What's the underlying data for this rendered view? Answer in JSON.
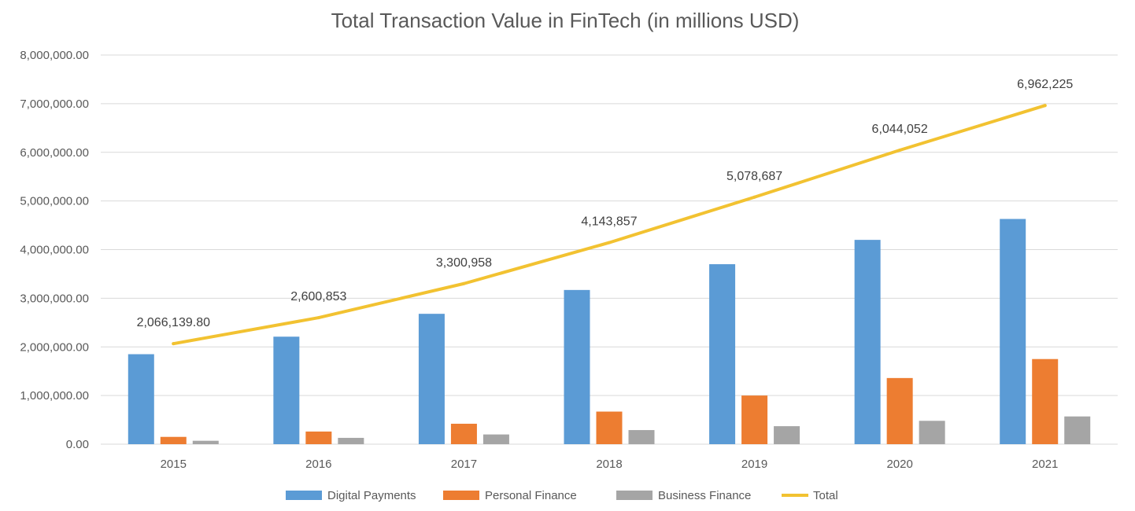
{
  "chart_data": {
    "type": "bar",
    "title": "Total Transaction Value in FinTech (in millions USD)",
    "xlabel": "",
    "ylabel": "",
    "ylim": [
      0,
      8000000
    ],
    "ytick_values": [
      0,
      1000000,
      2000000,
      3000000,
      4000000,
      5000000,
      6000000,
      7000000,
      8000000
    ],
    "ytick_labels": [
      "0.00",
      "1,000,000.00",
      "2,000,000.00",
      "3,000,000.00",
      "4,000,000.00",
      "5,000,000.00",
      "6,000,000.00",
      "7,000,000.00",
      "8,000,000.00"
    ],
    "grid": true,
    "legend_position": "bottom",
    "categories": [
      "2015",
      "2016",
      "2017",
      "2018",
      "2019",
      "2020",
      "2021"
    ],
    "series": [
      {
        "name": "Digital Payments",
        "type": "bar",
        "color": "#5b9bd5",
        "values": [
          1850000,
          2210000,
          2680000,
          3170000,
          3700000,
          4200000,
          4630000
        ]
      },
      {
        "name": "Personal Finance",
        "type": "bar",
        "color": "#ed7d31",
        "values": [
          150000,
          260000,
          420000,
          670000,
          1000000,
          1360000,
          1750000
        ]
      },
      {
        "name": "Business Finance",
        "type": "bar",
        "color": "#a5a5a5",
        "values": [
          70000,
          130000,
          200000,
          290000,
          370000,
          480000,
          570000
        ]
      },
      {
        "name": "Total",
        "type": "line",
        "color": "#f2c231",
        "values": [
          2066139.8,
          2600853,
          3300958,
          4143857,
          5078687,
          6044052,
          6962225
        ],
        "data_labels": [
          "2,066,139.80",
          "2,600,853",
          "3,300,958",
          "4,143,857",
          "5,078,687",
          "6,044,052",
          "6,962,225"
        ]
      }
    ]
  }
}
